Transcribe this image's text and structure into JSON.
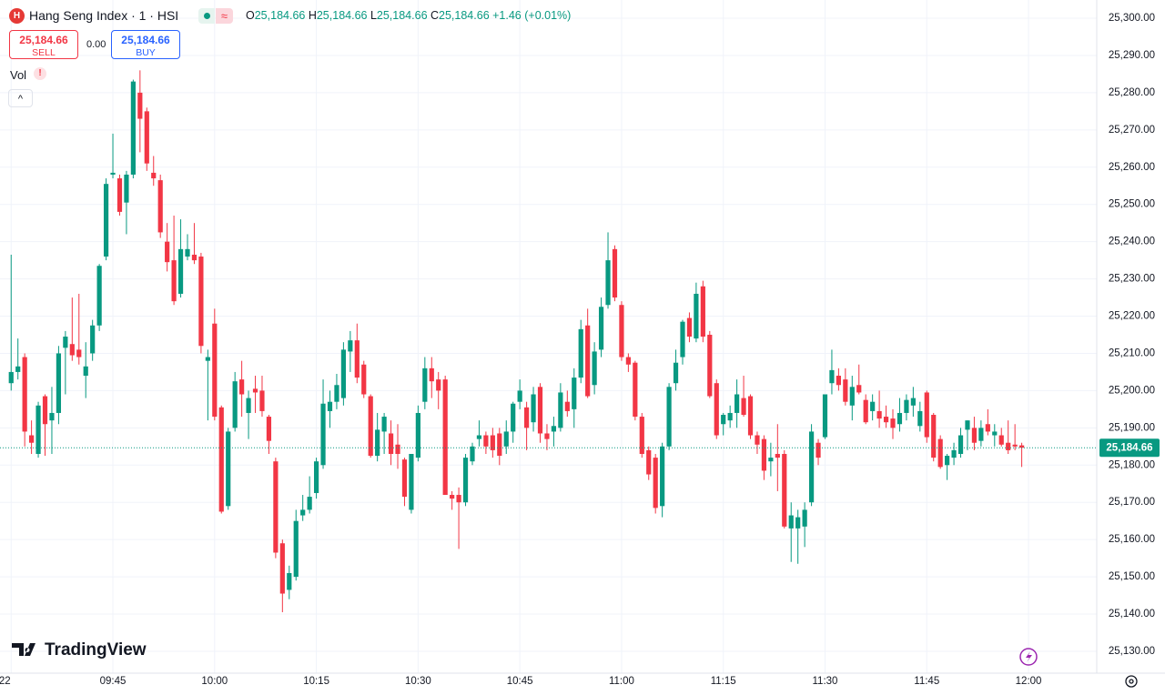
{
  "header": {
    "title": "Hang Seng Index · 1 · HSI",
    "ohlc": [
      {
        "key": "O",
        "value": "25,184.66"
      },
      {
        "key": "H",
        "value": "25,184.66"
      },
      {
        "key": "L",
        "value": "25,184.66"
      },
      {
        "key": "C",
        "value": "25,184.66"
      }
    ],
    "change": "+1.46 (+0.01%)"
  },
  "trade": {
    "sell_price": "25,184.66",
    "sell_label": "SELL",
    "spread": "0.00",
    "buy_price": "25,184.66",
    "buy_label": "BUY"
  },
  "indicator": "Vol",
  "brand": "TradingView",
  "chart_data": {
    "type": "candlestick",
    "x": [
      "09:30",
      "09:31",
      "09:32",
      "09:33",
      "09:34",
      "09:35",
      "09:36",
      "09:37",
      "09:38",
      "09:39",
      "09:40",
      "09:41",
      "09:42",
      "09:43",
      "09:44",
      "09:45",
      "09:46",
      "09:47",
      "09:48",
      "09:49",
      "09:50",
      "09:51",
      "09:52",
      "09:53",
      "09:54",
      "09:55",
      "09:56",
      "09:57",
      "09:58",
      "09:59",
      "10:00",
      "10:01",
      "10:02",
      "10:03",
      "10:04",
      "10:05",
      "10:06",
      "10:07",
      "10:08",
      "10:09",
      "10:10",
      "10:11",
      "10:12",
      "10:13",
      "10:14",
      "10:15",
      "10:16",
      "10:17",
      "10:18",
      "10:19",
      "10:20",
      "10:21",
      "10:22",
      "10:23",
      "10:24",
      "10:25",
      "10:26",
      "10:27",
      "10:28",
      "10:29",
      "10:30",
      "10:31",
      "10:32",
      "10:33",
      "10:34",
      "10:35",
      "10:36",
      "10:37",
      "10:38",
      "10:39",
      "10:40",
      "10:41",
      "10:42",
      "10:43",
      "10:44",
      "10:45",
      "10:46",
      "10:47",
      "10:48",
      "10:49",
      "10:50",
      "10:51",
      "10:52",
      "10:53",
      "10:54",
      "10:55",
      "10:56",
      "10:57",
      "10:58",
      "10:59",
      "11:00",
      "11:01",
      "11:02",
      "11:03",
      "11:04",
      "11:05",
      "11:06",
      "11:07",
      "11:08",
      "11:09",
      "11:10",
      "11:11",
      "11:12",
      "11:13",
      "11:14",
      "11:15",
      "11:16",
      "11:17",
      "11:18",
      "11:19",
      "11:20",
      "11:21",
      "11:22",
      "11:23",
      "11:24",
      "11:25",
      "11:26",
      "11:27",
      "11:28",
      "11:29",
      "11:30",
      "11:31",
      "11:32",
      "11:33",
      "11:34",
      "11:35",
      "11:36",
      "11:37",
      "11:38",
      "11:39",
      "11:40",
      "11:41",
      "11:42",
      "11:43",
      "11:44",
      "11:45",
      "11:46",
      "11:47",
      "11:48",
      "11:49",
      "11:50",
      "11:51",
      "11:52",
      "11:53",
      "11:54",
      "11:55",
      "11:56",
      "11:57",
      "11:58",
      "11:59"
    ],
    "open": [
      25202,
      25205,
      25209,
      25188,
      25183,
      25198.5,
      25192,
      25194,
      25211.5,
      25212.5,
      25211,
      25204,
      25210,
      25217.5,
      25236,
      25258,
      25257,
      25250.5,
      25258,
      25280,
      25275,
      25258.5,
      25256.5,
      25240,
      25235,
      25226,
      25236,
      25236.5,
      25236,
      25208,
      25218,
      25195.5,
      25169,
      25190,
      25203,
      25194,
      25200.5,
      25200,
      25193,
      25181,
      25159,
      25146.5,
      25150,
      25166.5,
      25168,
      25172.5,
      25180,
      25194.5,
      25197,
      25198,
      25210.5,
      25213.5,
      25207,
      25198.5,
      25182.5,
      25189,
      25188.5,
      25185.5,
      25181.5,
      25168,
      25182,
      25197,
      25206,
      25203,
      25203,
      25172,
      25172,
      25170,
      25181,
      25187,
      25188,
      25188,
      25188.5,
      25185,
      25189,
      25197,
      25195.5,
      25191.5,
      25201,
      25188.5,
      25189,
      25190,
      25197,
      25195,
      25203.5,
      25217.5,
      25201.5,
      25211,
      25223,
      25238,
      25223,
      25209,
      25207.5,
      25193,
      25184,
      25182,
      25169,
      25185,
      25202,
      25209,
      25219.5,
      25214,
      25228,
      25215,
      25202,
      25191,
      25192,
      25194,
      25198,
      25198.5,
      25188,
      25187,
      25181,
      25183,
      25183,
      25163,
      25163,
      25163.5,
      25170,
      25186,
      25187.5,
      25202,
      25204,
      25203,
      25196,
      25201.5,
      25197.5,
      25194.5,
      25194.5,
      25193,
      25192.5,
      25191,
      25194,
      25196,
      25190.5,
      25199.5,
      25193.5,
      25187,
      25180,
      25182,
      25183,
      25189.5,
      25190,
      25186.5,
      25191,
      25188,
      25188,
      25186,
      25185.5,
      25185.3
    ],
    "high": [
      25236.5,
      25214,
      25210,
      25192,
      25197,
      25199,
      25201,
      25212,
      25216,
      25225,
      25226,
      25213,
      25219,
      25234,
      25257,
      25269,
      25258,
      25259,
      25283.5,
      25286,
      25276,
      25263,
      25258,
      25245,
      25247,
      25246,
      25242,
      25245,
      25237,
      25211,
      25222,
      25196,
      25190,
      25205,
      25208,
      25200,
      25204,
      25204,
      25193.5,
      25182,
      25160,
      25153,
      25168,
      25172,
      25177,
      25182,
      25203,
      25200,
      25204.5,
      25213,
      25216,
      25218,
      25208,
      25199,
      25194,
      25194,
      25192,
      25191,
      25182,
      25183,
      25196,
      25209,
      25209,
      25205,
      25204,
      25173,
      25174,
      25183,
      25186,
      25192,
      25189,
      25190,
      25190,
      25192,
      25197,
      25203,
      25197,
      25201,
      25202,
      25191,
      25193,
      25202,
      25200,
      25206,
      25219,
      25222,
      25213,
      25225,
      25242.5,
      25239,
      25224,
      25210,
      25208,
      25194,
      25185,
      25183,
      25186,
      25202,
      25211,
      25219,
      25221,
      25229,
      25229.5,
      25216,
      25203,
      25194,
      25196,
      25203,
      25204,
      25199,
      25189,
      25188,
      25186,
      25191,
      25184,
      25170,
      25168,
      25170,
      25191,
      25187,
      25199,
      25211,
      25206,
      25206,
      25204,
      25207,
      25199,
      25199,
      25200,
      25196,
      25195,
      25198,
      25199,
      25201,
      25197,
      25200,
      25194,
      25188,
      25183,
      25186,
      25190,
      25192,
      25193,
      25192,
      25195,
      25191,
      25190,
      25192,
      25191,
      25186
    ],
    "low": [
      25200,
      25203,
      25185,
      25183,
      25182,
      25182.5,
      25183,
      25191,
      25199,
      25208,
      25207,
      25198,
      25208,
      25216,
      25235,
      25257,
      25247,
      25242,
      25257,
      25264,
      25259,
      25255,
      25241,
      25232,
      25223,
      25225,
      25235,
      25234,
      25210,
      25192,
      25192,
      25167,
      25168,
      25189,
      25193,
      25187,
      25194,
      25193,
      25183,
      25155,
      25140.5,
      25144,
      25149,
      25165,
      25167,
      25171,
      25179,
      25190,
      25195,
      25196,
      25205,
      25202,
      25198,
      25182,
      25181,
      25183,
      25180,
      25179,
      25169,
      25167,
      25181,
      25195,
      25198,
      25195,
      25172,
      25168,
      25157.5,
      25169,
      25180,
      25185,
      25183,
      25182,
      25180,
      25183,
      25186,
      25195,
      25184,
      25189,
      25186,
      25184,
      25185,
      25189,
      25193,
      25190,
      25202,
      25198,
      25199,
      25209,
      25222,
      25224,
      25208,
      25205,
      25192,
      25182,
      25176,
      25167,
      25166,
      25184,
      25200,
      25207,
      25213,
      25213,
      25213,
      25198,
      25187,
      25188,
      25190,
      25190,
      25193,
      25187,
      25183,
      25176,
      25177,
      25173,
      25163,
      25154,
      25153.5,
      25158,
      25169,
      25180,
      25187,
      25199,
      25200,
      25196,
      25192,
      25199,
      25191,
      25192,
      25190,
      25190,
      25187,
      25189,
      25192,
      25193,
      25189,
      25186,
      25181,
      25179,
      25176,
      25180,
      25182,
      25184,
      25184,
      25185,
      25188,
      25185,
      25185,
      25183,
      25184,
      25179.5
    ],
    "close": [
      25205,
      25206.5,
      25189,
      25186,
      25196,
      25191,
      25194,
      25210,
      25214.5,
      25209.5,
      25209,
      25206.5,
      25217.5,
      25233.5,
      25255.5,
      25258.5,
      25248,
      25258,
      25283,
      25273,
      25261,
      25257,
      25242.5,
      25234.5,
      25224,
      25238,
      25238,
      25235,
      25212,
      25209,
      25193,
      25167.5,
      25189,
      25202.5,
      25199,
      25198,
      25199.5,
      25194.5,
      25186.5,
      25156.5,
      25145.5,
      25151,
      25165,
      25168,
      25171.5,
      25181,
      25196.5,
      25197,
      25201.5,
      25211,
      25213.5,
      25203.5,
      25199,
      25182.5,
      25189.5,
      25193,
      25183,
      25183,
      25171.5,
      25183,
      25194,
      25206,
      25202.5,
      25200,
      25172,
      25171,
      25170,
      25182,
      25185,
      25188,
      25185,
      25184,
      25182.5,
      25189,
      25196.5,
      25200,
      25190,
      25199,
      25188.5,
      25187,
      25190.5,
      25199.5,
      25194.5,
      25203.5,
      25216.5,
      25198.5,
      25210.5,
      25222.5,
      25235,
      25225,
      25209,
      25207,
      25193,
      25183,
      25177.5,
      25168.5,
      25185,
      25201,
      25207.5,
      25218.5,
      25214.5,
      25226,
      25214.5,
      25198.5,
      25188,
      25193.5,
      25194,
      25199,
      25193.5,
      25188,
      25185.5,
      25178.5,
      25182,
      25182,
      25163.5,
      25166.5,
      25166,
      25168,
      25189,
      25182,
      25199,
      25205.5,
      25201.5,
      25197,
      25201,
      25199.5,
      25191.5,
      25197,
      25192.5,
      25191.5,
      25190,
      25194,
      25197.5,
      25198,
      25194.5,
      25187.5,
      25182,
      25179.5,
      25182.5,
      25184,
      25188,
      25192,
      25186,
      25190,
      25189,
      25189,
      25185.5,
      25184,
      25185,
      25184.66
    ],
    "up_color": "#089981",
    "down_color": "#f23645",
    "ylim": [
      25124.13,
      25304.89
    ],
    "yticks": [
      {
        "value": 25300,
        "label": "25,300.00"
      },
      {
        "value": 25290,
        "label": "25,290.00"
      },
      {
        "value": 25280,
        "label": "25,280.00"
      },
      {
        "value": 25270,
        "label": "25,270.00"
      },
      {
        "value": 25260,
        "label": "25,260.00"
      },
      {
        "value": 25250,
        "label": "25,250.00"
      },
      {
        "value": 25240,
        "label": "25,240.00"
      },
      {
        "value": 25230,
        "label": "25,230.00"
      },
      {
        "value": 25220,
        "label": "25,220.00"
      },
      {
        "value": 25210,
        "label": "25,210.00"
      },
      {
        "value": 25200,
        "label": "25,200.00"
      },
      {
        "value": 25190,
        "label": "25,190.00"
      },
      {
        "value": 25180,
        "label": "25,180.00"
      },
      {
        "value": 25170,
        "label": "25,170.00"
      },
      {
        "value": 25160,
        "label": "25,160.00"
      },
      {
        "value": 25150,
        "label": "25,150.00"
      },
      {
        "value": 25140,
        "label": "25,140.00"
      },
      {
        "value": 25130,
        "label": "25,130.00"
      }
    ],
    "xticks": [
      {
        "value": "09:30",
        "label": "22"
      },
      "09:45",
      "10:00",
      "10:15",
      "10:30",
      "10:45",
      "11:00",
      "11:15",
      "11:30",
      "11:45",
      "12:00"
    ],
    "grid": true,
    "last_price": {
      "value": 25184.66,
      "label": "25,184.66"
    }
  }
}
